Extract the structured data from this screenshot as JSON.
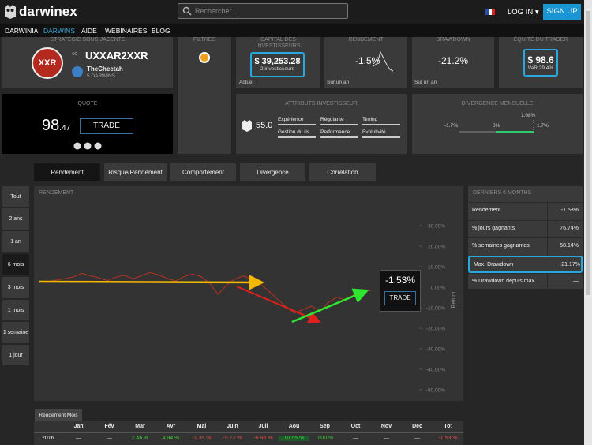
{
  "header": {
    "logo": "darwinex",
    "search_placeholder": "Rechercher ...",
    "login": "LOG IN",
    "signup": "SIGN UP"
  },
  "nav": [
    "DARWINIA",
    "DARWINS",
    "AIDE",
    "WEBINAIRES",
    "BLOG"
  ],
  "strategy": {
    "label": "STRATÉGIE SOUS-JACENTE",
    "badge": "XXR",
    "name": "UXXAR2XXR",
    "trader": "TheCheetah",
    "darwins": "5 DARWINS"
  },
  "quote": {
    "label": "QUOTE",
    "price": "98",
    "decimals": ".47",
    "button": "TRADE"
  },
  "filters": {
    "label": "FILTRES"
  },
  "capital": {
    "label": "CAPITAL DES INVESTISSEURS",
    "value": "$ 39,253.28",
    "investors": "2 investisseurs",
    "period": "Actuel"
  },
  "return": {
    "label": "RENDEMENT",
    "value": "-1.5%",
    "period": "Sur un an"
  },
  "drawdown": {
    "label": "DRAWDOWN",
    "value": "-21.2%",
    "period": "Sur un an"
  },
  "trader_equity": {
    "label": "ÉQUITÉ DU TRADER",
    "value": "$ 98.6",
    "var": "VaR 29.4%"
  },
  "attributes": {
    "title": "ATTRIBUTS INVESTISSEUR",
    "score": "55.0",
    "items": [
      "Expérience",
      "Régularité",
      "Timing",
      "Gestion du ris...",
      "Performance",
      "Evolutivité"
    ]
  },
  "divergence": {
    "title": "DIVERGENCE MENSUELLE",
    "top": "1.68%",
    "min": "-1.7%",
    "zero": "0%",
    "max": "1.7%"
  },
  "tabs": [
    "Rendement",
    "Risque/Rendement",
    "Comportement",
    "Divergence",
    "Corrélation"
  ],
  "periods": [
    "Tout",
    "2 ans",
    "1 an",
    "6 mois",
    "3 mois",
    "1 mois",
    "1 semaine",
    "1 jour"
  ],
  "chart_data": {
    "type": "line",
    "title": "RENDEMENT",
    "y_label": "Return",
    "ylim": [
      -50,
      30
    ],
    "yticks": [
      {
        "value": 30,
        "label": "30.00%"
      },
      {
        "value": 20,
        "label": "20.00%"
      },
      {
        "value": 10,
        "label": "10.00%"
      },
      {
        "value": 0,
        "label": "0.00%"
      },
      {
        "value": -10,
        "label": "-10.00%"
      },
      {
        "value": -20,
        "label": "-20.00%"
      },
      {
        "value": -30,
        "label": "-30.00%"
      },
      {
        "value": -40,
        "label": "-40.00%"
      },
      {
        "value": -50,
        "label": "-50.00%"
      }
    ],
    "values": [
      2.3,
      2.8,
      3.5,
      4.2,
      5.0,
      6.8,
      5.5,
      4.6,
      3.2,
      4.9,
      5.8,
      4.1,
      5.6,
      7.2,
      6.0,
      4.3,
      3.0,
      5.1,
      6.5,
      5.2,
      2.0,
      -3.5,
      1.0,
      4.0,
      5.5,
      3.8,
      1.5,
      -2.0,
      -5.8,
      -9.5,
      -12.6,
      -10.8,
      -9.2,
      -11.7,
      -7.4,
      -4.8,
      -6.3,
      -3.5,
      -2.1,
      -1.53
    ],
    "color": "#b53220",
    "current_value": "-1.53%",
    "button": "TRADE"
  },
  "stats": {
    "title": "DERNIERS 6 MONTHS",
    "rows": [
      [
        "Rendement",
        "-1.53%"
      ],
      [
        "% jours gagnants",
        "76.74%"
      ],
      [
        "% semaines gagnantes",
        "58.14%"
      ],
      [
        "Max. Drawdown",
        "-21.17%"
      ],
      [
        "% Drawdown depuis max.",
        "—"
      ]
    ]
  },
  "monthly": {
    "tab": "Rendement Mois",
    "header": [
      "Jan",
      "Fév",
      "Mar",
      "Avr",
      "Mai",
      "Juin",
      "Juil",
      "Aou",
      "Sep",
      "Oct",
      "Nov",
      "Déc",
      "Tot"
    ],
    "rows": [
      {
        "year": "2016",
        "values": [
          "—",
          "—",
          "2.46 %",
          "4.94 %",
          "-1.39 %",
          "-9.72 %",
          "-6.95 %",
          "10.55 %",
          "0.00 %",
          "—",
          "—",
          "—",
          "-1.53 %"
        ]
      }
    ]
  }
}
